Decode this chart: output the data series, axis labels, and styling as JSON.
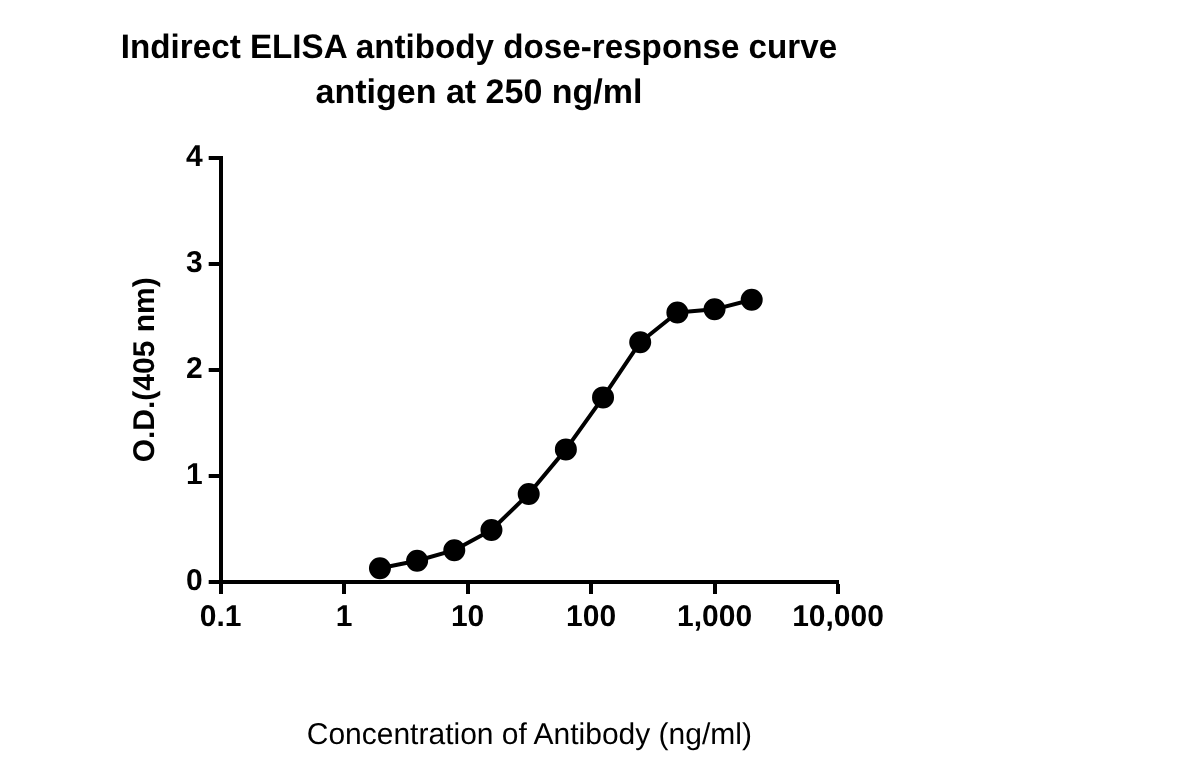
{
  "chart_data": {
    "type": "line",
    "title": "Indirect ELISA antibody dose-response curve",
    "subtitle": "antigen at 250 ng/ml",
    "xlabel": "Concentration of Antibody (ng/ml)",
    "ylabel": "O.D.(405 nm)",
    "x": [
      1.95,
      3.9,
      7.8,
      15.6,
      31.25,
      62.5,
      125,
      250,
      500,
      1000,
      2000
    ],
    "series": [
      {
        "color": "#000000",
        "values": [
          0.13,
          0.2,
          0.3,
          0.49,
          0.83,
          1.25,
          1.74,
          2.26,
          2.54,
          2.57,
          2.66
        ]
      }
    ],
    "log": "x",
    "xlim": [
      0.1,
      10000
    ],
    "xticks": [
      0.1,
      1,
      10,
      100,
      {
        "value": 1000,
        "label": "1,000"
      },
      {
        "value": 10000,
        "label": "10,000"
      }
    ],
    "ylim": [
      0,
      4
    ],
    "yticks": [
      0,
      1,
      2,
      3,
      4
    ],
    "grid": false,
    "legend": false,
    "marker": "circle",
    "line_style": "solid"
  }
}
